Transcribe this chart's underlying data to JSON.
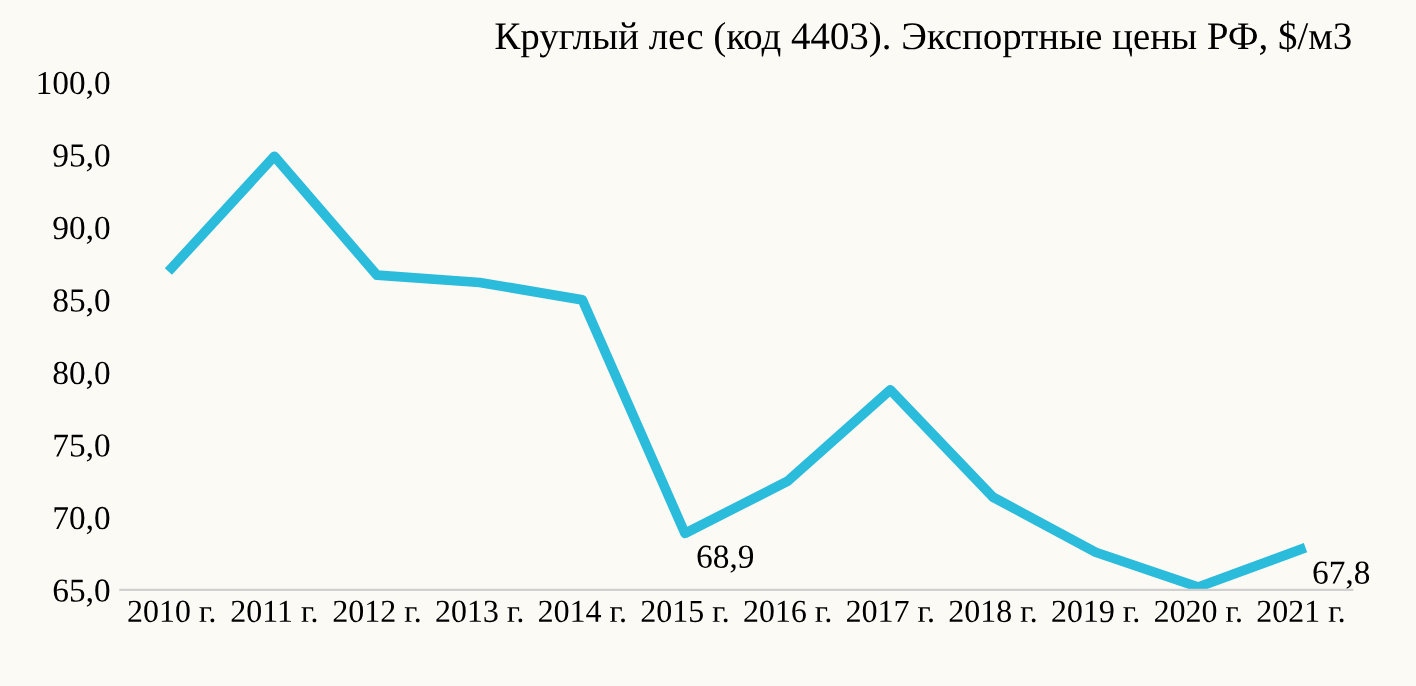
{
  "chart_data": {
    "type": "line",
    "title": "Круглый лес (код 4403). Экспортные цены РФ, $/м3",
    "categories": [
      "2010 г.",
      "2011 г.",
      "2012 г.",
      "2013 г.",
      "2014 г.",
      "2015 г.",
      "2016 г.",
      "2017 г.",
      "2018 г.",
      "2019 г.",
      "2020 г.",
      "2021 г."
    ],
    "series": [
      {
        "color": "#2bbbdb",
        "values": [
          87.2,
          94.9,
          86.7,
          86.2,
          85.0,
          68.9,
          72.5,
          78.8,
          71.4,
          67.6,
          65.2,
          67.8
        ],
        "value_labels": [
          null,
          null,
          null,
          null,
          null,
          "68,9",
          null,
          null,
          null,
          null,
          null,
          "67,8"
        ]
      }
    ],
    "ylim": [
      65,
      100
    ],
    "yticks": [
      {
        "value": 65,
        "label": "65,0"
      },
      {
        "value": 70,
        "label": "70,0"
      },
      {
        "value": 75,
        "label": "75,0"
      },
      {
        "value": 80,
        "label": "80,0"
      },
      {
        "value": 85,
        "label": "85,0"
      },
      {
        "value": 90,
        "label": "90,0"
      },
      {
        "value": 95,
        "label": "95,0"
      },
      {
        "value": 100,
        "label": "100,0"
      }
    ],
    "grid": false,
    "marker": "none",
    "line_style": "solid"
  }
}
